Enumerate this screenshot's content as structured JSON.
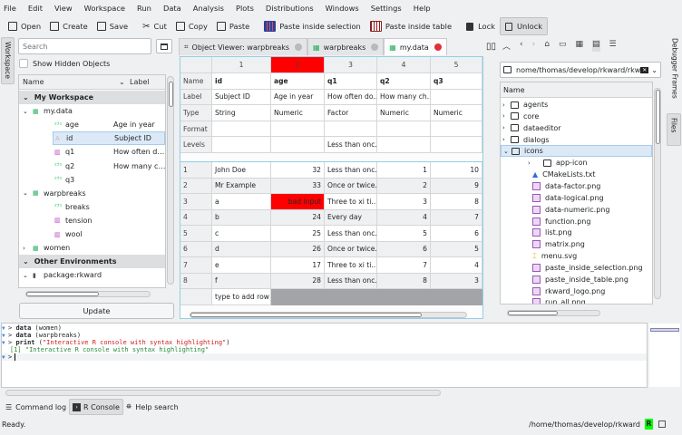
{
  "menu": [
    "File",
    "Edit",
    "View",
    "Workspace",
    "Run",
    "Data",
    "Analysis",
    "Plots",
    "Distributions",
    "Windows",
    "Settings",
    "Help"
  ],
  "toolbar": {
    "open": "Open",
    "create": "Create",
    "save": "Save",
    "cut": "Cut",
    "copy": "Copy",
    "paste": "Paste",
    "paste_sel": "Paste inside selection",
    "paste_table": "Paste inside table",
    "lock": "Lock",
    "unlock": "Unlock"
  },
  "left_tabs": {
    "workspace": "Workspace"
  },
  "workspace": {
    "search_placeholder": "Search",
    "show_hidden": "Show Hidden Objects",
    "col_name": "Name",
    "col_label": "Label",
    "items": [
      {
        "kind": "group",
        "name": "My Workspace"
      },
      {
        "kind": "df",
        "name": "my.data",
        "level": 1,
        "expanded": true
      },
      {
        "kind": "num",
        "name": "age",
        "label": "Age in year",
        "level": 2
      },
      {
        "kind": "str",
        "name": "id",
        "label": "Subject ID",
        "level": 2,
        "selected": true
      },
      {
        "kind": "fac",
        "name": "q1",
        "label": "How often do...",
        "level": 2
      },
      {
        "kind": "num",
        "name": "q2",
        "label": "How many ch...",
        "level": 2
      },
      {
        "kind": "num",
        "name": "q3",
        "label": "",
        "level": 2
      },
      {
        "kind": "df",
        "name": "warpbreaks",
        "level": 1,
        "expanded": true
      },
      {
        "kind": "num",
        "name": "breaks",
        "label": "",
        "level": 2
      },
      {
        "kind": "fac",
        "name": "tension",
        "label": "",
        "level": 2
      },
      {
        "kind": "fac",
        "name": "wool",
        "label": "",
        "level": 2
      },
      {
        "kind": "df",
        "name": "women",
        "level": 1,
        "expanded": false
      },
      {
        "kind": "group",
        "name": "Other Environments"
      },
      {
        "kind": "pkg",
        "name": "package:rkward",
        "level": 1,
        "expanded": true
      }
    ],
    "update": "Update"
  },
  "tabs": [
    {
      "label": "Object Viewer: warpbreaks",
      "active": false
    },
    {
      "label": "warpbreaks",
      "active": false
    },
    {
      "label": "my.data",
      "active": true
    }
  ],
  "editor": {
    "col_numbers": [
      "1",
      "2",
      "3",
      "4",
      "5"
    ],
    "error_col": 2,
    "meta_rows": [
      {
        "header": "Name",
        "cells": [
          "id",
          "age",
          "q1",
          "q2",
          "q3"
        ]
      },
      {
        "header": "Label",
        "cells": [
          "Subject ID",
          "Age in year",
          "How often do...",
          "How many ch...",
          ""
        ]
      },
      {
        "header": "Type",
        "cells": [
          "String",
          "Numeric",
          "Factor",
          "Numeric",
          "Numeric"
        ]
      },
      {
        "header": "Format",
        "cells": [
          "",
          "",
          "",
          "",
          ""
        ]
      },
      {
        "header": "Levels",
        "cells": [
          "",
          "",
          "Less than onc...",
          "",
          ""
        ]
      }
    ],
    "rows": [
      {
        "n": "1",
        "cells": [
          "John Doe",
          "32",
          "Less than onc...",
          "1",
          "10"
        ]
      },
      {
        "n": "2",
        "cells": [
          "Mr Example",
          "33",
          "Once or twice...",
          "2",
          "9"
        ]
      },
      {
        "n": "3",
        "cells": [
          "a",
          "bad input",
          "Three to xi ti...",
          "3",
          "8"
        ]
      },
      {
        "n": "4",
        "cells": [
          "b",
          "24",
          "Every day",
          "4",
          "7"
        ]
      },
      {
        "n": "5",
        "cells": [
          "c",
          "25",
          "Less than onc...",
          "5",
          "6"
        ]
      },
      {
        "n": "6",
        "cells": [
          "d",
          "26",
          "Once or twice...",
          "6",
          "5"
        ]
      },
      {
        "n": "7",
        "cells": [
          "e",
          "17",
          "Three to xi ti...",
          "7",
          "4"
        ]
      },
      {
        "n": "8",
        "cells": [
          "f",
          "28",
          "Less than onc...",
          "8",
          "3"
        ]
      }
    ],
    "add_row": "type to add row",
    "error_color": "#ff0000"
  },
  "files": {
    "path": "nome/thomas/develop/rkward/rkward/",
    "col_name": "Name",
    "items": [
      {
        "name": "agents",
        "type": "folder",
        "level": 0
      },
      {
        "name": "core",
        "type": "folder",
        "level": 0
      },
      {
        "name": "dataeditor",
        "type": "folder",
        "level": 0
      },
      {
        "name": "dialogs",
        "type": "folder",
        "level": 0
      },
      {
        "name": "icons",
        "type": "folder",
        "level": 0,
        "expanded": true,
        "selected": true
      },
      {
        "name": "app-icon",
        "type": "folder",
        "level": 1
      },
      {
        "name": "CMakeLists.txt",
        "type": "cmake",
        "level": 1
      },
      {
        "name": "data-factor.png",
        "type": "image",
        "level": 1
      },
      {
        "name": "data-logical.png",
        "type": "image",
        "level": 1
      },
      {
        "name": "data-numeric.png",
        "type": "image",
        "level": 1
      },
      {
        "name": "function.png",
        "type": "image",
        "level": 1
      },
      {
        "name": "list.png",
        "type": "image",
        "level": 1
      },
      {
        "name": "matrix.png",
        "type": "image",
        "level": 1
      },
      {
        "name": "menu.svg",
        "type": "svg",
        "level": 1
      },
      {
        "name": "paste_inside_selection.png",
        "type": "image",
        "level": 1
      },
      {
        "name": "paste_inside_table.png",
        "type": "image",
        "level": 1
      },
      {
        "name": "rkward_logo.png",
        "type": "image",
        "level": 1
      },
      {
        "name": "run_all.png",
        "type": "image",
        "level": 1
      }
    ]
  },
  "right_tabs": {
    "debugger": "Debugger Frames",
    "files": "Files"
  },
  "console": {
    "lines": [
      {
        "prompt": true,
        "cmd": "data",
        "rest": " (women)"
      },
      {
        "prompt": true,
        "cmd": "data",
        "rest": " (warpbreaks)"
      },
      {
        "prompt": true,
        "cmd": "print",
        "rest": " (",
        "str": "\"Interactive R console with syntax highlighting\"",
        "end": ")"
      },
      {
        "prompt": false,
        "out": "[1] \"Interactive R console with syntax highlighting\""
      }
    ],
    "prompt": ">"
  },
  "bottom_tabs": {
    "log": "Command log",
    "console": "R Console",
    "help": "Help search"
  },
  "status": {
    "text": "Ready.",
    "path": "/home/thomas/develop/rkward",
    "r": "R",
    "r_color": "#00ff00"
  }
}
